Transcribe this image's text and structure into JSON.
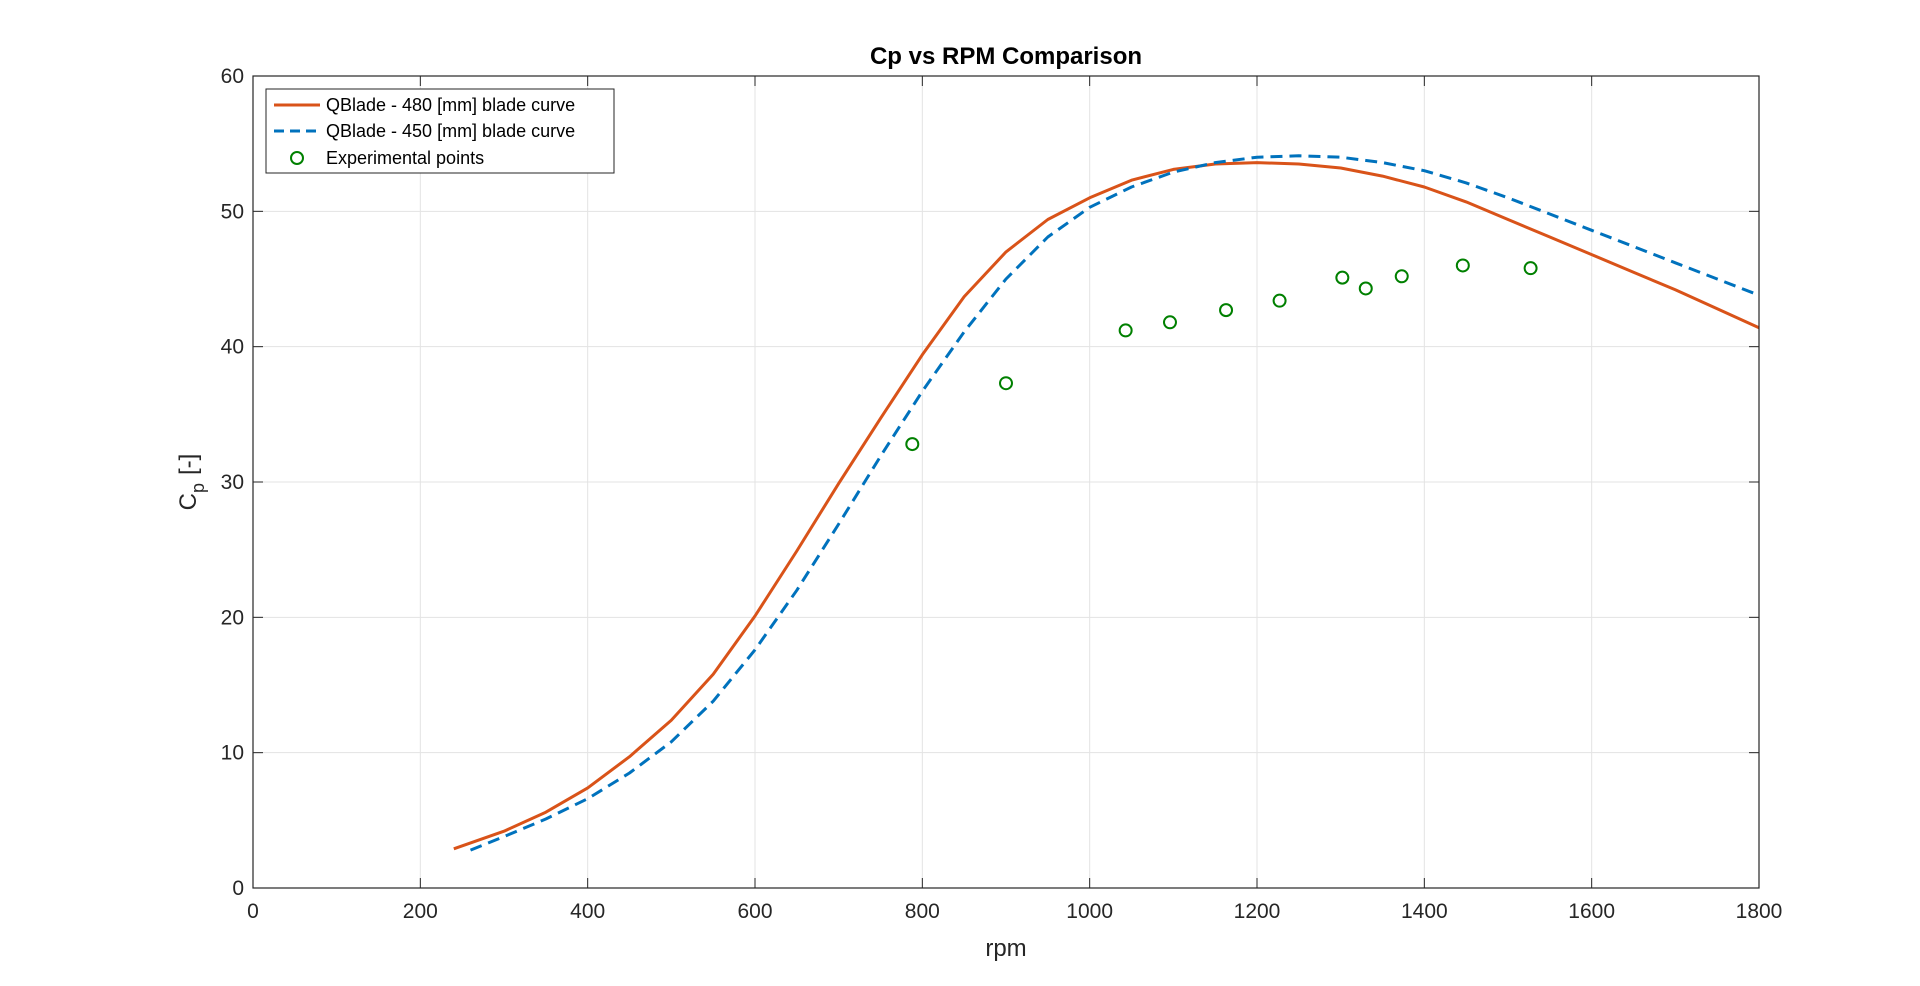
{
  "chart_data": {
    "type": "line",
    "title": "Cp vs RPM Comparison",
    "xlabel": "rpm",
    "ylabel_main": "C",
    "ylabel_sub": "p",
    "ylabel_unit": "[-]",
    "xlim": [
      0,
      1800
    ],
    "ylim": [
      0,
      60
    ],
    "xticks": [
      0,
      200,
      400,
      600,
      800,
      1000,
      1200,
      1400,
      1600,
      1800
    ],
    "yticks": [
      0,
      10,
      20,
      30,
      40,
      50,
      60
    ],
    "grid": true,
    "legend_position": "top-left",
    "series": [
      {
        "name": "QBlade - 480 [mm] blade curve",
        "style": "solid",
        "color": "#D95319",
        "x": [
          240,
          300,
          350,
          400,
          450,
          500,
          550,
          600,
          650,
          700,
          750,
          800,
          850,
          900,
          950,
          1000,
          1050,
          1100,
          1150,
          1200,
          1250,
          1300,
          1350,
          1400,
          1450,
          1500,
          1550,
          1600,
          1650,
          1700,
          1750,
          1800
        ],
        "y": [
          2.9,
          4.2,
          5.6,
          7.4,
          9.7,
          12.4,
          15.8,
          20.1,
          24.9,
          29.9,
          34.7,
          39.4,
          43.7,
          47.0,
          49.4,
          51.0,
          52.3,
          53.1,
          53.5,
          53.6,
          53.5,
          53.2,
          52.6,
          51.8,
          50.7,
          49.4,
          48.1,
          46.8,
          45.5,
          44.2,
          42.8,
          41.4
        ]
      },
      {
        "name": "QBlade - 450 [mm] blade curve",
        "style": "dashed",
        "color": "#0072BD",
        "x": [
          260,
          300,
          350,
          400,
          450,
          500,
          550,
          600,
          650,
          700,
          750,
          800,
          850,
          900,
          950,
          1000,
          1050,
          1100,
          1150,
          1200,
          1250,
          1300,
          1350,
          1400,
          1450,
          1500,
          1550,
          1600,
          1650,
          1700,
          1750,
          1800
        ],
        "y": [
          2.8,
          3.8,
          5.1,
          6.6,
          8.5,
          10.8,
          13.8,
          17.6,
          22.0,
          26.9,
          31.9,
          36.7,
          41.1,
          45.0,
          48.1,
          50.3,
          51.8,
          52.9,
          53.6,
          54.0,
          54.1,
          54.0,
          53.6,
          53.0,
          52.1,
          51.0,
          49.8,
          48.6,
          47.4,
          46.2,
          45.0,
          43.8
        ]
      },
      {
        "name": "Experimental points",
        "style": "markers",
        "color": "#008000",
        "x": [
          788,
          900,
          1043,
          1096,
          1163,
          1227,
          1302,
          1330,
          1373,
          1446,
          1527
        ],
        "y": [
          32.8,
          37.3,
          41.2,
          41.8,
          42.7,
          43.4,
          45.1,
          44.3,
          45.2,
          46.0,
          45.8
        ]
      }
    ]
  }
}
